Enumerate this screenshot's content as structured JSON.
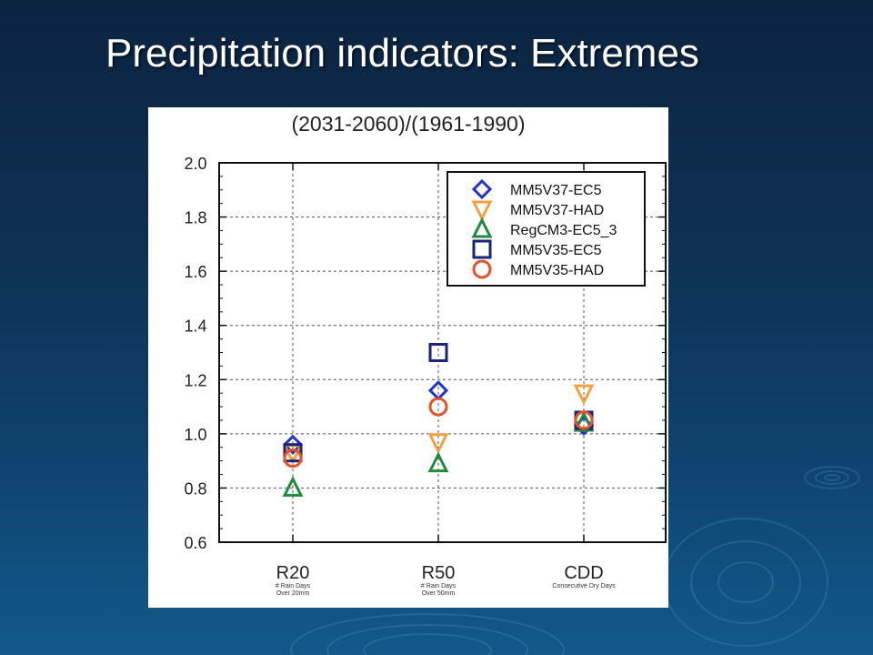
{
  "slide": {
    "title": "Precipitation indicators: Extremes"
  },
  "colors": {
    "background_top": "#0b2440",
    "background_bottom": "#11598a",
    "title_text": "#ffffff"
  },
  "chart_data": {
    "type": "scatter",
    "title": "(2031-2060)/(1961-1990)",
    "xlabel": "",
    "ylabel": "",
    "categories": [
      "R20",
      "R50",
      "CDD"
    ],
    "category_sublabels": [
      [
        "# Rain Days",
        "Over 20mm"
      ],
      [
        "# Rain Days",
        "Over 50mm"
      ],
      [
        "Consecutive Dry Days"
      ]
    ],
    "ylim": [
      0.6,
      2.0
    ],
    "yticks": [
      "0.6",
      "0.8",
      "1.0",
      "1.2",
      "1.4",
      "1.6",
      "1.8",
      "2.0"
    ],
    "grid": "horizontal dashed",
    "legend_position": "top-right",
    "series": [
      {
        "name": "MM5V37-EC5",
        "marker": "diamond",
        "color": "#2233cc",
        "values": [
          0.96,
          1.16,
          1.03
        ]
      },
      {
        "name": "MM5V37-HAD",
        "marker": "triangle-down",
        "color": "#f5a040",
        "values": [
          0.93,
          0.97,
          1.15
        ]
      },
      {
        "name": "RegCM3-EC5_3",
        "marker": "triangle-up",
        "color": "#1e8c3a",
        "values": [
          0.8,
          0.89,
          1.04
        ]
      },
      {
        "name": "MM5V35-EC5",
        "marker": "square",
        "color": "#1a237e",
        "values": [
          0.93,
          1.3,
          1.05
        ]
      },
      {
        "name": "MM5V35-HAD",
        "marker": "circle",
        "color": "#e8502a",
        "values": [
          0.91,
          1.1,
          1.05
        ]
      }
    ]
  }
}
